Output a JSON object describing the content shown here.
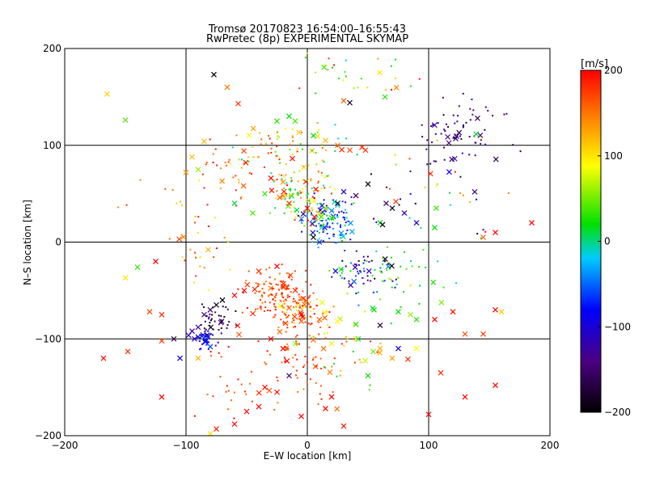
{
  "chart_data": {
    "type": "scatter",
    "title": "Tromsø 20170823 16:54:00–16:55:43",
    "subtitle": "RwPretec (8p) EXPERIMENTAL SKYMAP",
    "xlabel": "E–W location [km]",
    "ylabel": "N–S location [km]",
    "xlim": [
      -200,
      200
    ],
    "ylim": [
      -200,
      200
    ],
    "xticks": [
      -200,
      -100,
      0,
      100,
      200
    ],
    "yticks": [
      -200,
      -100,
      0,
      100,
      200
    ],
    "grid": true,
    "colorbar": {
      "label": "[m/s]",
      "range": [
        -200,
        200
      ],
      "ticks": [
        200,
        100,
        0,
        -100,
        -200
      ]
    },
    "markers": {
      "small": "dot",
      "large": "x"
    },
    "series": [
      {
        "points": [
          [
            -165,
            153,
            110
          ],
          [
            -150,
            126,
            40
          ],
          [
            -77,
            173,
            -200
          ],
          [
            -66,
            160,
            150
          ],
          [
            -57,
            143,
            180
          ],
          [
            30,
            146,
            160
          ],
          [
            35,
            144,
            -180
          ],
          [
            64,
            150,
            30
          ],
          [
            -85,
            104,
            120
          ],
          [
            -95,
            88,
            120
          ],
          [
            -25,
            125,
            30
          ],
          [
            -15,
            130,
            20
          ],
          [
            -10,
            125,
            40
          ],
          [
            5,
            110,
            20
          ],
          [
            35,
            95,
            170
          ],
          [
            45,
            98,
            180
          ],
          [
            48,
            95,
            180
          ],
          [
            25,
            100,
            150
          ],
          [
            15,
            105,
            120
          ],
          [
            -35,
            50,
            30
          ],
          [
            -20,
            48,
            150
          ],
          [
            -15,
            40,
            180
          ],
          [
            0,
            35,
            200
          ],
          [
            10,
            30,
            100
          ],
          [
            15,
            35,
            50
          ],
          [
            20,
            25,
            30
          ],
          [
            25,
            38,
            -20
          ],
          [
            30,
            52,
            -100
          ],
          [
            50,
            60,
            -200
          ],
          [
            40,
            48,
            -150
          ],
          [
            25,
            40,
            -190
          ],
          [
            60,
            20,
            20
          ],
          [
            62,
            18,
            -200
          ],
          [
            105,
            15,
            20
          ],
          [
            -45,
            30,
            40
          ],
          [
            -60,
            40,
            10
          ],
          [
            -90,
            75,
            60
          ],
          [
            -100,
            72,
            130
          ],
          [
            -30,
            66,
            200
          ],
          [
            -20,
            62,
            140
          ],
          [
            5,
            5,
            -200
          ],
          [
            10,
            0,
            -60
          ],
          [
            -25,
            -25,
            200
          ],
          [
            -40,
            -30,
            180
          ],
          [
            -52,
            -50,
            200
          ],
          [
            -60,
            -55,
            200
          ],
          [
            -70,
            -60,
            -200
          ],
          [
            -75,
            -65,
            -180
          ],
          [
            -80,
            -70,
            -150
          ],
          [
            -85,
            -75,
            -130
          ],
          [
            -90,
            -88,
            -130
          ],
          [
            -95,
            -92,
            -120
          ],
          [
            -93,
            -100,
            -110
          ],
          [
            -90,
            -98,
            -100
          ],
          [
            -84,
            -103,
            -80
          ],
          [
            -80,
            -108,
            -60
          ],
          [
            -110,
            -100,
            -170
          ],
          [
            -120,
            -102,
            170
          ],
          [
            -125,
            -20,
            200
          ],
          [
            -150,
            -37,
            100
          ],
          [
            -140,
            -26,
            30
          ],
          [
            -130,
            -72,
            170
          ],
          [
            -120,
            -75,
            180
          ],
          [
            -148,
            -113,
            180
          ],
          [
            -168,
            -120,
            200
          ],
          [
            -105,
            -120,
            -100
          ],
          [
            -90,
            -120,
            120
          ],
          [
            -120,
            -160,
            200
          ],
          [
            -15,
            -68,
            160
          ],
          [
            -5,
            -75,
            200
          ],
          [
            10,
            -80,
            160
          ],
          [
            25,
            -82,
            90
          ],
          [
            40,
            -85,
            30
          ],
          [
            55,
            -70,
            20
          ],
          [
            60,
            -86,
            -170
          ],
          [
            75,
            -72,
            20
          ],
          [
            85,
            -75,
            60
          ],
          [
            90,
            -80,
            30
          ],
          [
            105,
            -80,
            200
          ],
          [
            130,
            -95,
            170
          ],
          [
            145,
            -95,
            180
          ],
          [
            155,
            -70,
            200
          ],
          [
            160,
            -72,
            110
          ],
          [
            120,
            -72,
            200
          ],
          [
            90,
            -110,
            90
          ],
          [
            75,
            -110,
            -100
          ],
          [
            60,
            -110,
            120
          ],
          [
            40,
            -100,
            100
          ],
          [
            20,
            -105,
            80
          ],
          [
            -10,
            -105,
            60
          ],
          [
            -30,
            -100,
            200
          ],
          [
            -20,
            -110,
            200
          ],
          [
            -15,
            -138,
            -150
          ],
          [
            -25,
            -155,
            200
          ],
          [
            -35,
            -150,
            200
          ],
          [
            -40,
            -170,
            200
          ],
          [
            -50,
            -175,
            200
          ],
          [
            -60,
            -188,
            200
          ],
          [
            -80,
            -198,
            100
          ],
          [
            -5,
            -180,
            200
          ],
          [
            15,
            -172,
            200
          ],
          [
            20,
            -160,
            200
          ],
          [
            30,
            -190,
            190
          ],
          [
            50,
            -138,
            20
          ],
          [
            70,
            -120,
            130
          ],
          [
            110,
            -135,
            180
          ],
          [
            100,
            -178,
            200
          ],
          [
            130,
            -160,
            200
          ],
          [
            155,
            -148,
            200
          ],
          [
            185,
            20,
            200
          ],
          [
            145,
            5,
            160
          ],
          [
            155,
            10,
            200
          ],
          [
            65,
            40,
            -150
          ],
          [
            70,
            35,
            -190
          ],
          [
            80,
            30,
            -120
          ],
          [
            90,
            20,
            -100
          ]
        ]
      }
    ],
    "clusters": [
      {
        "cx": -25,
        "cy": -55,
        "rx": 20,
        "ry": 22,
        "vmin": 140,
        "vmax": 200,
        "n": 140
      },
      {
        "cx": 0,
        "cy": -70,
        "rx": 18,
        "ry": 18,
        "vmin": 80,
        "vmax": 200,
        "n": 70
      },
      {
        "cx": 15,
        "cy": 20,
        "rx": 18,
        "ry": 22,
        "vmin": -140,
        "vmax": 30,
        "n": 120
      },
      {
        "cx": -5,
        "cy": 50,
        "rx": 22,
        "ry": 25,
        "vmin": -20,
        "vmax": 200,
        "n": 110
      },
      {
        "cx": -10,
        "cy": 100,
        "rx": 35,
        "ry": 20,
        "vmin": -20,
        "vmax": 200,
        "n": 60
      },
      {
        "cx": -55,
        "cy": 80,
        "rx": 25,
        "ry": 30,
        "vmin": 120,
        "vmax": 200,
        "n": 40
      },
      {
        "cx": 50,
        "cy": -35,
        "rx": 25,
        "ry": 20,
        "vmin": -200,
        "vmax": 60,
        "n": 70
      },
      {
        "cx": -75,
        "cy": -80,
        "rx": 14,
        "ry": 12,
        "vmin": -200,
        "vmax": -110,
        "n": 40
      },
      {
        "cx": -85,
        "cy": -100,
        "rx": 8,
        "ry": 8,
        "vmin": -130,
        "vmax": -70,
        "n": 30
      },
      {
        "cx": -5,
        "cy": -120,
        "rx": 25,
        "ry": 40,
        "vmin": 140,
        "vmax": 200,
        "n": 70
      },
      {
        "cx": 40,
        "cy": -120,
        "rx": 35,
        "ry": 35,
        "vmin": -20,
        "vmax": 200,
        "n": 30
      },
      {
        "cx": 130,
        "cy": 115,
        "rx": 30,
        "ry": 30,
        "vmin": -180,
        "vmax": -110,
        "n": 70
      },
      {
        "cx": 100,
        "cy": 60,
        "rx": 50,
        "ry": 60,
        "vmin": -200,
        "vmax": 200,
        "n": 40
      },
      {
        "cx": -90,
        "cy": 10,
        "rx": 40,
        "ry": 60,
        "vmin": 80,
        "vmax": 200,
        "n": 40
      },
      {
        "cx": 30,
        "cy": 170,
        "rx": 50,
        "ry": 25,
        "vmin": -20,
        "vmax": 200,
        "n": 30
      },
      {
        "cx": -60,
        "cy": -140,
        "rx": 25,
        "ry": 40,
        "vmin": 150,
        "vmax": 200,
        "n": 30
      },
      {
        "cx": 80,
        "cy": -40,
        "rx": 40,
        "ry": 40,
        "vmin": -20,
        "vmax": 80,
        "n": 30
      }
    ]
  }
}
